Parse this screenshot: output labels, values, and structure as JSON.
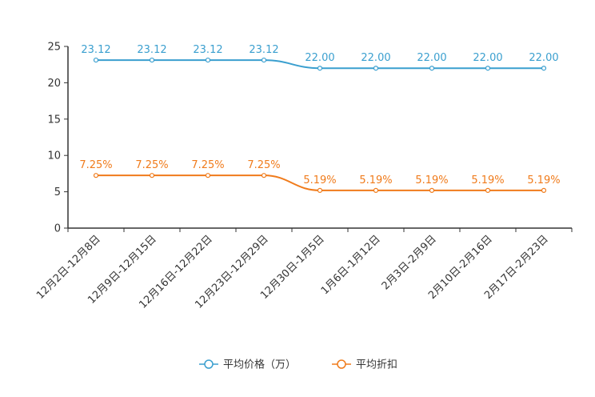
{
  "chart_data": {
    "type": "line",
    "title": "",
    "xlabel": "",
    "ylabel": "",
    "ylim": [
      0,
      25
    ],
    "yticks": [
      0,
      5,
      10,
      15,
      20,
      25
    ],
    "grid": false,
    "legend_position": "bottom-center",
    "categories": [
      "12月2日-12月8日",
      "12月9日-12月15日",
      "12月16日-12月22日",
      "12月23日-12月29日",
      "12月30日-1月5日",
      "1月6日-1月12日",
      "2月3日-2月9日",
      "2月10日-2月16日",
      "2月17日-2月23日"
    ],
    "series": [
      {
        "name": "平均价格（万）",
        "color": "#3a9fcf",
        "values": [
          23.12,
          23.12,
          23.12,
          23.12,
          22.0,
          22.0,
          22.0,
          22.0,
          22.0
        ],
        "labels": [
          "23.12",
          "23.12",
          "23.12",
          "23.12",
          "22.00",
          "22.00",
          "22.00",
          "22.00",
          "22.00"
        ]
      },
      {
        "name": "平均折扣",
        "color": "#f07b1b",
        "values": [
          7.25,
          7.25,
          7.25,
          7.25,
          5.19,
          5.19,
          5.19,
          5.19,
          5.19
        ],
        "labels": [
          "7.25%",
          "7.25%",
          "7.25%",
          "7.25%",
          "5.19%",
          "5.19%",
          "5.19%",
          "5.19%",
          "5.19%"
        ]
      }
    ]
  }
}
